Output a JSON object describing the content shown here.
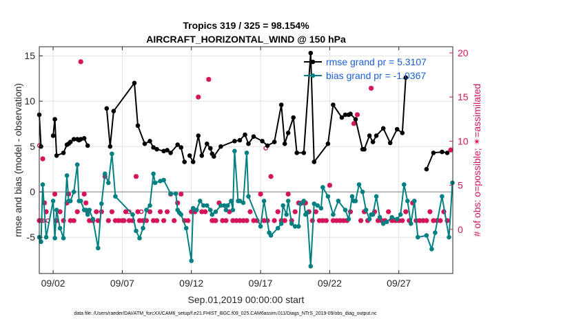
{
  "chart_data": {
    "type": "line",
    "title": "Tropics 319 / 325 = 98.154%",
    "subtitle": "AIRCRAFT_HORIZONTAL_WIND @ 150 hPa",
    "xlabel": "Sep.01,2019 00:00:00 start",
    "ylabel": "rmse and bias (model - observation)",
    "ylabel_right": "# of obs: o=possible; ✴=assimilated",
    "footnote": "data file: /Users/raeder/DAI/ATM_forcXX/CAM6_setup/f.e21.FHIST_BGC.f09_025.CAM6assim.011/Diags_NTrS_2019-09/obs_diag_output.nc",
    "x_tick_labels": [
      "09/02",
      "09/07",
      "09/12",
      "09/17",
      "09/22",
      "09/27"
    ],
    "x_tick_days": [
      2,
      7,
      12,
      17,
      22,
      27
    ],
    "xlim": [
      1.0,
      30.9
    ],
    "ylim": [
      -9,
      16
    ],
    "y_ticks": [
      -5,
      0,
      5,
      10,
      15
    ],
    "y2lim": [
      -5,
      20.7
    ],
    "y2_ticks": [
      0,
      5,
      10,
      15,
      20
    ],
    "grid": true,
    "legend_position": "top-right",
    "colors": {
      "rmse": "#000000",
      "bias": "#008080",
      "obs": "#d4145a",
      "legend_text": "#1a5fd8",
      "zero_line": "#a6a6a6"
    },
    "series": [
      {
        "name": "rmse grand pr = 5.3107",
        "marker": "filled-circle",
        "x": [
          1.0,
          1.125,
          1.25,
          2.0,
          2.125,
          2.25,
          2.75,
          3.0,
          3.125,
          3.25,
          3.5,
          3.75,
          3.875,
          4.0,
          4.25,
          4.5,
          4.625,
          5.875,
          6.125,
          6.375,
          7.875,
          8.125,
          8.625,
          9.0,
          9.25,
          9.5,
          10.0,
          10.25,
          10.5,
          11.0,
          11.25,
          11.5,
          11.625,
          11.875,
          12.125,
          12.5,
          12.75,
          13.125,
          13.375,
          13.5,
          13.625,
          14.125,
          15.125,
          15.5,
          15.875,
          16.125,
          16.5,
          17.125,
          17.5,
          18.0,
          18.5,
          18.75,
          19.0,
          19.375,
          19.625,
          20.125,
          20.625,
          20.875,
          21.875,
          22.25,
          22.875,
          23.125,
          23.375,
          23.5,
          23.875,
          24.375,
          24.5,
          24.875,
          25.125,
          25.375,
          25.875,
          26.375,
          26.875,
          27.25,
          27.5,
          27.75,
          29.0,
          29.5,
          30.125,
          30.5
        ],
        "y": [
          8.5,
          5.0,
          null,
          6.2,
          8.0,
          4.0,
          4.3,
          5.2,
          5.3,
          5.5,
          5.8,
          5.8,
          5.7,
          5.8,
          5.9,
          5.1,
          null,
          9.2,
          5.0,
          8.9,
          12.0,
          7.3,
          5.3,
          5.6,
          4.9,
          4.7,
          4.5,
          4.6,
          4.3,
          5.2,
          4.9,
          3.3,
          null,
          4.0,
          3.3,
          6.2,
          4.0,
          5.3,
          4.8,
          4.2,
          3.9,
          5.0,
          5.6,
          5.7,
          6.3,
          5.3,
          6.1,
          5.6,
          5.1,
          5.5,
          9.6,
          5.3,
          6.5,
          8.2,
          4.3,
          4.3,
          15.3,
          3.3,
          5.3,
          9.6,
          8.2,
          8.5,
          8.5,
          8.6,
          8.0,
          4.7,
          4.7,
          6.2,
          5.5,
          6.2,
          7.0,
          5.4,
          6.9,
          6.5,
          12.6,
          null,
          2.5,
          4.3,
          4.4,
          4.3
        ]
      },
      {
        "name": "bias grand pr = -1.0367",
        "marker": "filled-circle",
        "x": [
          1.0,
          1.125,
          1.25,
          1.5,
          2.0,
          2.125,
          2.25,
          2.5,
          2.75,
          3.0,
          3.125,
          3.25,
          3.5,
          3.75,
          3.875,
          4.0,
          4.25,
          4.375,
          4.5,
          4.625,
          4.875,
          5.25,
          5.5,
          5.75,
          6.0,
          6.25,
          6.5,
          7.75,
          8.0,
          8.25,
          8.5,
          8.75,
          9.0,
          9.25,
          9.375,
          9.75,
          10.0,
          10.5,
          10.875,
          11.0,
          11.125,
          11.25,
          11.625,
          12.0,
          12.125,
          12.375,
          12.625,
          12.875,
          13.125,
          13.375,
          13.5,
          13.75,
          14.125,
          14.375,
          14.5,
          14.625,
          14.875,
          15.0,
          15.125,
          15.375,
          15.5,
          15.75,
          16.0,
          16.125,
          17.0,
          17.25,
          17.625,
          17.75,
          18.25,
          18.5,
          18.625,
          18.875,
          19.0,
          19.25,
          19.5,
          19.75,
          19.875,
          20.125,
          20.25,
          20.375,
          20.625,
          20.875,
          21.125,
          21.375,
          21.5,
          21.875,
          22.25,
          22.625,
          23.125,
          23.375,
          23.625,
          23.75,
          23.875,
          24.125,
          24.375,
          24.625,
          24.875,
          25.0,
          25.125,
          25.375,
          25.625,
          25.875,
          26.125,
          26.5,
          26.875,
          27.125,
          27.375,
          27.625,
          27.875,
          28.125,
          28.375,
          29.0,
          29.375,
          29.625,
          30.125,
          30.625,
          30.875
        ],
        "y": [
          -5.0,
          -5.5,
          0.8,
          -5.0,
          -1.0,
          -5.1,
          -2.0,
          -4.0,
          -5.1,
          1.8,
          -1.0,
          -1.0,
          0.0,
          3.0,
          -1.0,
          -1.0,
          -2.0,
          -2.0,
          -2.5,
          -2.0,
          -3.0,
          -6.2,
          -1.3,
          2.0,
          1.0,
          4.2,
          -0.5,
          -2.5,
          -4.3,
          -5.1,
          -4.0,
          -2.0,
          -1.5,
          2.0,
          1.0,
          1.2,
          1.3,
          -0.2,
          -0.2,
          -2.0,
          -2.3,
          -2.5,
          -4.0,
          -7.6,
          -1.8,
          -2.0,
          -1.0,
          -1.5,
          -1.5,
          -2.0,
          -2.5,
          -2.2,
          -1.5,
          -1.5,
          -2.0,
          -1.5,
          -1.0,
          -2.0,
          4.5,
          -1.0,
          -1.0,
          -1.2,
          4.3,
          -0.5,
          -3.8,
          -1.0,
          -4.5,
          -4.8,
          -4.0,
          -3.5,
          -1.5,
          -2.5,
          -1.0,
          -3.5,
          -3.8,
          -3.8,
          -1.3,
          -1.0,
          -2.5,
          -2.3,
          -8.2,
          -1.3,
          -1.5,
          -1.8,
          0.5,
          -0.5,
          -2.5,
          -1.0,
          -2.0,
          -3.0,
          -0.5,
          -1.0,
          -1.0,
          0.8,
          0.0,
          -2.0,
          -3.0,
          -2.5,
          -2.5,
          -0.5,
          -2.8,
          -3.5,
          -3.3,
          -2.8,
          -3.0,
          -2.5,
          0.8,
          -1.0,
          -3.5,
          -1.0,
          -5.0,
          -4.8,
          -6.3,
          -4.5,
          -0.5,
          -5.0,
          1.0
        ]
      },
      {
        "name": "obs assimilated",
        "axis": "right",
        "marker": "asterisk",
        "x": [
          1.0,
          1.125,
          1.25,
          1.375,
          1.5,
          2.125,
          2.25,
          2.5,
          2.75,
          3.0,
          3.125,
          3.25,
          3.5,
          3.75,
          4.0,
          4.25,
          4.375,
          4.5,
          4.625,
          4.875,
          5.125,
          5.25,
          5.5,
          5.75,
          6.0,
          6.25,
          6.5,
          6.75,
          7.0,
          7.125,
          7.25,
          7.5,
          7.75,
          8.0,
          8.125,
          8.25,
          8.5,
          8.75,
          9.0,
          9.25,
          9.5,
          9.75,
          10.0,
          10.25,
          10.5,
          10.75,
          11.0,
          11.25,
          11.5,
          11.75,
          12.0,
          12.25,
          12.5,
          12.75,
          13.0,
          13.25,
          13.5,
          13.625,
          13.75,
          14.0,
          14.25,
          14.5,
          14.75,
          15.0,
          15.25,
          15.5,
          15.75,
          16.0,
          16.25,
          16.5,
          16.75,
          17.0,
          17.25,
          17.5,
          17.75,
          18.0,
          18.25,
          18.5,
          18.75,
          19.0,
          19.25,
          19.5,
          19.75,
          20.0,
          20.25,
          20.5,
          20.75,
          21.0,
          21.25,
          21.5,
          21.75,
          22.0,
          22.25,
          22.5,
          22.75,
          23.0,
          23.25,
          23.5,
          23.75,
          24.0,
          24.25,
          24.5,
          24.75,
          25.0,
          25.25,
          25.5,
          25.75,
          26.0,
          26.25,
          26.5,
          26.75,
          27.0,
          27.25,
          27.5,
          27.75,
          28.0,
          28.25,
          28.5,
          28.75,
          29.0,
          29.25,
          29.5,
          29.75,
          30.0,
          30.25,
          30.5,
          30.75
        ],
        "y": [
          1,
          1,
          8,
          3,
          2,
          4,
          1,
          2,
          1,
          3,
          4,
          1,
          1,
          2,
          19,
          4,
          3,
          2,
          1,
          1,
          2,
          1,
          2,
          6,
          1,
          2,
          1,
          1,
          1,
          1,
          2,
          1,
          1,
          6,
          2,
          1,
          1,
          1,
          2,
          1,
          1,
          2,
          1,
          2,
          4,
          1,
          3,
          4,
          1,
          1,
          2,
          2,
          15,
          2,
          2,
          17,
          1,
          1,
          1,
          3,
          1,
          1,
          2,
          1,
          1,
          1,
          1,
          1,
          2,
          1,
          1,
          4,
          1,
          1,
          6,
          1,
          2,
          1,
          1,
          4,
          1,
          2,
          3,
          3,
          3,
          2,
          1,
          2,
          1,
          1,
          1,
          5,
          1,
          1,
          1,
          1,
          1,
          2,
          12,
          13,
          1,
          2,
          1,
          16,
          2,
          1,
          1,
          1,
          2,
          1,
          1,
          1,
          1,
          2,
          1,
          3,
          1,
          1,
          1,
          1,
          2,
          1,
          1,
          1,
          2,
          1,
          9
        ]
      },
      {
        "name": "obs possible",
        "axis": "right",
        "marker": "open-circle",
        "x": [
          1.0,
          1.25,
          1.625,
          7.5,
          8.375,
          17.375
        ],
        "y": [
          9.5,
          1.0,
          1.0,
          2.0,
          2.0,
          9.2
        ]
      }
    ]
  }
}
